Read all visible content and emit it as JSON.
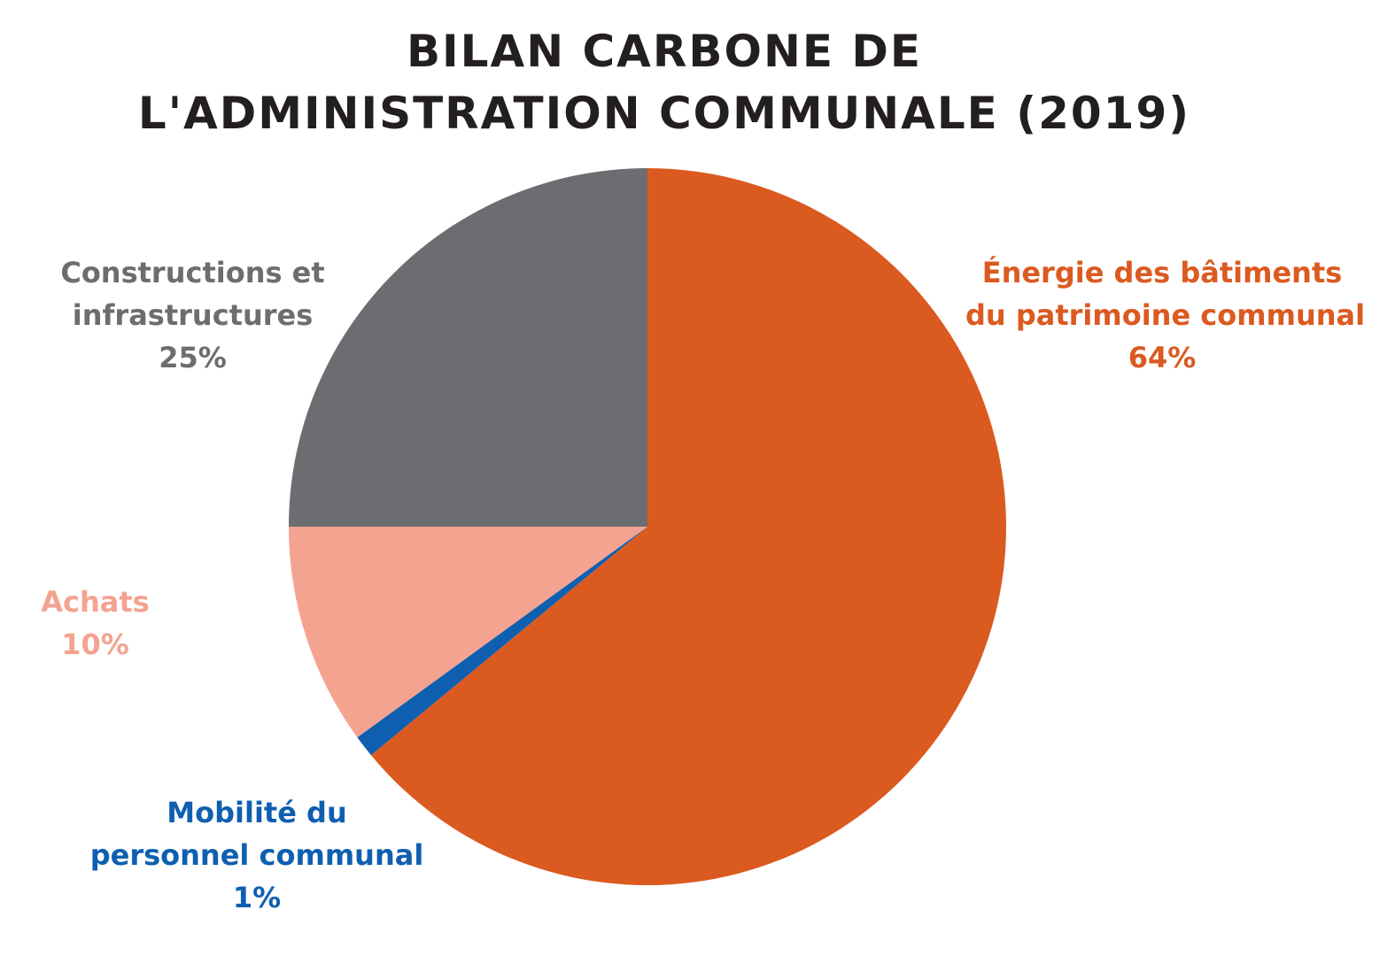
{
  "chart_data": {
    "type": "pie",
    "title_lines": [
      "BILAN CARBONE DE",
      "L'ADMINISTRATION COMMUNALE (2019)"
    ],
    "slices": [
      {
        "key": "energie",
        "label_lines": [
          "Énergie des bâtiments",
          "du patrimoine communal"
        ],
        "value": 64,
        "value_label": "64%",
        "color": "#db5a20"
      },
      {
        "key": "mobilite",
        "label_lines": [
          "Mobilité du",
          "personnel communal"
        ],
        "value": 1,
        "value_label": "1%",
        "color": "#0f5fb0"
      },
      {
        "key": "achats",
        "label_lines": [
          "Achats"
        ],
        "value": 10,
        "value_label": "10%",
        "color": "#f4a391"
      },
      {
        "key": "constructions",
        "label_lines": [
          "Constructions et",
          "infrastructures"
        ],
        "value": 25,
        "value_label": "25%",
        "color": "#6c6d70"
      }
    ]
  }
}
